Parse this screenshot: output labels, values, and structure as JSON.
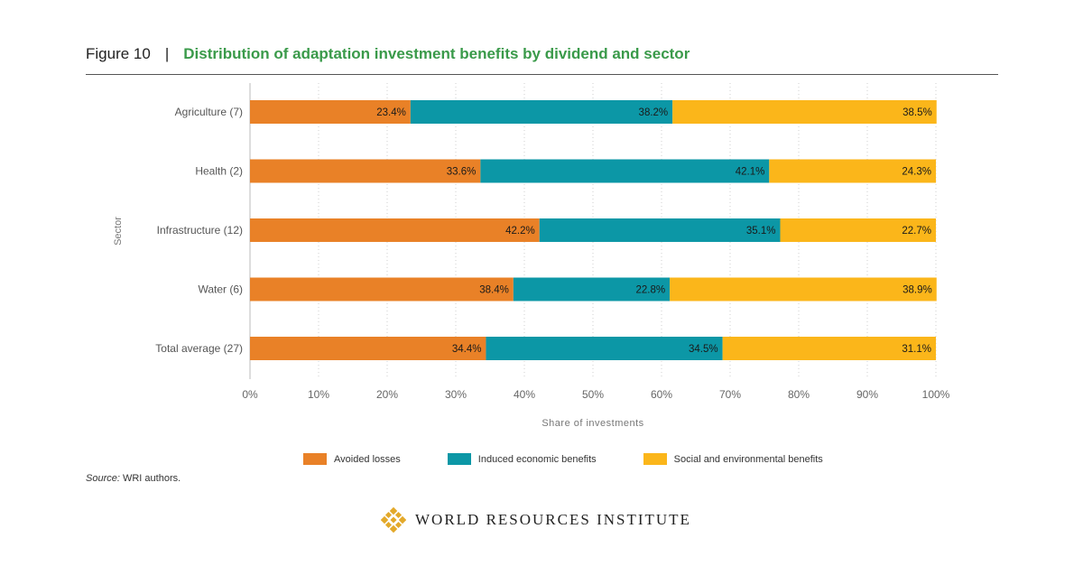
{
  "figure": {
    "number": "Figure 10",
    "separator": "|",
    "title": "Distribution of adaptation investment benefits by dividend and sector"
  },
  "source": {
    "label": "Source:",
    "text": "WRI authors."
  },
  "logo": {
    "text": "WORLD RESOURCES INSTITUTE"
  },
  "chart_data": {
    "type": "bar",
    "orientation": "horizontal",
    "stacked": true,
    "categories": [
      "Agriculture (7)",
      "Health (2)",
      "Infrastructure (12)",
      "Water (6)",
      "Total average (27)"
    ],
    "series": [
      {
        "name": "Avoided losses",
        "color": "#e98127",
        "values": [
          23.4,
          33.6,
          42.2,
          38.4,
          34.4
        ],
        "labels": [
          "23.4%",
          "33.6%",
          "42.2%",
          "38.4%",
          "34.4%"
        ]
      },
      {
        "name": "Induced economic benefits",
        "color": "#0c97a6",
        "values": [
          38.2,
          42.1,
          35.1,
          22.8,
          34.5
        ],
        "labels": [
          "38.2%",
          "42.1%",
          "35.1%",
          "22.8%",
          "34.5%"
        ]
      },
      {
        "name": "Social and environmental benefits",
        "color": "#fbb61a",
        "values": [
          38.5,
          24.3,
          22.7,
          38.9,
          31.1
        ],
        "labels": [
          "38.5%",
          "24.3%",
          "22.7%",
          "38.9%",
          "31.1%"
        ]
      }
    ],
    "xlabel": "Share of investments",
    "ylabel": "Sector",
    "xlim": [
      0,
      100
    ],
    "xticks": [
      "0%",
      "10%",
      "20%",
      "30%",
      "40%",
      "50%",
      "60%",
      "70%",
      "80%",
      "90%",
      "100%"
    ],
    "grid": "vertical dotted",
    "legend_position": "bottom"
  }
}
